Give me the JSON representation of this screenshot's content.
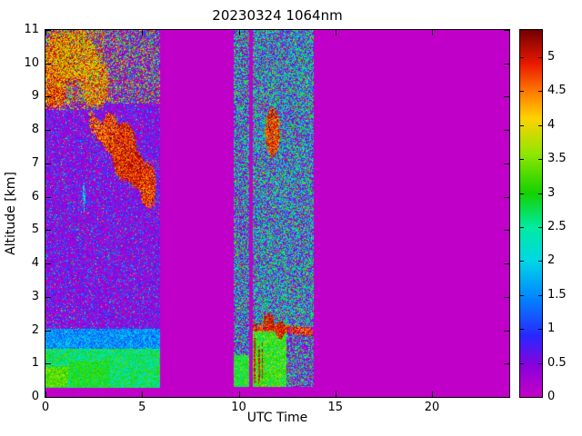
{
  "chart_data": {
    "type": "heatmap",
    "title": "20230324 1064nm",
    "xlabel": "UTC Time",
    "ylabel": "Altitude [km]",
    "xlim": [
      0,
      24
    ],
    "ylim": [
      0,
      11
    ],
    "xticks": [
      0,
      5,
      10,
      15,
      20
    ],
    "yticks": [
      0,
      1,
      2,
      3,
      4,
      5,
      6,
      7,
      8,
      9,
      10,
      11
    ],
    "colorbar": {
      "range": [
        0,
        5.4
      ],
      "ticks": [
        0,
        0.5,
        1,
        1.5,
        2,
        2.5,
        3,
        3.5,
        4,
        4.5,
        5
      ]
    },
    "colormap": {
      "stops": [
        [
          0.0,
          198,
          0,
          198
        ],
        [
          0.45,
          140,
          0,
          220
        ],
        [
          0.9,
          40,
          40,
          255
        ],
        [
          1.5,
          0,
          140,
          255
        ],
        [
          2.0,
          0,
          215,
          230
        ],
        [
          2.5,
          0,
          235,
          160
        ],
        [
          3.0,
          20,
          210,
          0
        ],
        [
          3.6,
          150,
          230,
          0
        ],
        [
          4.1,
          255,
          210,
          0
        ],
        [
          4.5,
          255,
          120,
          0
        ],
        [
          4.9,
          235,
          25,
          0
        ],
        [
          5.4,
          115,
          0,
          0
        ]
      ]
    },
    "background_value": 0.05,
    "data_time_windows": [
      [
        0,
        5.92
      ],
      [
        9.72,
        10.52
      ],
      [
        10.72,
        13.88
      ]
    ],
    "regions": [
      {
        "name": "seg1-lownoise",
        "t": [
          0,
          5.92
        ],
        "z": [
          2.05,
          11
        ],
        "type": "lownoise",
        "max": 1.5,
        "pow": 2.2,
        "seed": 1
      },
      {
        "name": "seg1-dots",
        "t": [
          0,
          5.92
        ],
        "z": [
          2.05,
          11
        ],
        "type": "speckle",
        "p": 0.045,
        "lo": 1.4,
        "hi": 3.1,
        "seed": 2
      },
      {
        "name": "seg1-hotdots",
        "t": [
          0,
          5.92
        ],
        "z": [
          2.05,
          11
        ],
        "type": "speckle",
        "p": 0.008,
        "lo": 3.4,
        "hi": 5.2,
        "seed": 3
      },
      {
        "name": "seg1-top-speckle",
        "t": [
          0,
          5.92
        ],
        "z": [
          8.8,
          11
        ],
        "type": "speckle",
        "p": 0.38,
        "lo": 2.0,
        "hi": 5.3,
        "seed": 4
      },
      {
        "name": "seg1-top-left-speckle",
        "t": [
          0,
          3.0
        ],
        "z": [
          8.6,
          11
        ],
        "type": "speckle",
        "p": 0.35,
        "lo": 3.2,
        "hi": 5.4,
        "seed": 5
      },
      {
        "name": "seg1-bl-top",
        "t": [
          0,
          5.92
        ],
        "z": [
          1.45,
          2.05
        ],
        "type": "noise",
        "base": 1.0,
        "amp": 1.1,
        "seed": 6
      },
      {
        "name": "seg1-bl",
        "t": [
          0,
          5.92
        ],
        "z": [
          0.27,
          1.45
        ],
        "type": "noise",
        "base": 1.9,
        "amp": 1.5,
        "seed": 7
      },
      {
        "name": "seg1-bl-bright",
        "t": [
          1.3,
          3.3
        ],
        "z": [
          0.3,
          1.05
        ],
        "type": "noise",
        "base": 2.5,
        "amp": 0.9,
        "seed": 8
      },
      {
        "name": "seg1-bl-yellow",
        "t": [
          0,
          1.2
        ],
        "z": [
          0.3,
          0.9
        ],
        "type": "noise",
        "base": 2.8,
        "amp": 1.0,
        "seed": 9
      },
      {
        "name": "colA-lownoise",
        "t": [
          9.72,
          10.52
        ],
        "z": [
          0.3,
          11
        ],
        "type": "lownoise",
        "max": 1.2,
        "pow": 2,
        "seed": 11
      },
      {
        "name": "colA-speckle",
        "t": [
          9.72,
          10.52
        ],
        "z": [
          0.3,
          11
        ],
        "type": "speckle",
        "p": 0.5,
        "lo": 1.7,
        "hi": 3.4,
        "seed": 12
      },
      {
        "name": "colA-hotdots",
        "t": [
          9.72,
          10.52
        ],
        "z": [
          0.3,
          11
        ],
        "type": "speckle",
        "p": 0.02,
        "lo": 3.6,
        "hi": 5.2,
        "seed": 13
      },
      {
        "name": "colA-bl",
        "t": [
          9.72,
          10.52
        ],
        "z": [
          0.3,
          1.25
        ],
        "type": "noise",
        "base": 2.3,
        "amp": 1.3,
        "seed": 14
      },
      {
        "name": "colB-lownoise",
        "t": [
          10.72,
          13.88
        ],
        "z": [
          2.1,
          11
        ],
        "type": "lownoise",
        "max": 1.2,
        "pow": 2,
        "seed": 15
      },
      {
        "name": "colB-speckle",
        "t": [
          10.72,
          13.88
        ],
        "z": [
          2.1,
          11
        ],
        "type": "speckle",
        "p": 0.55,
        "lo": 1.6,
        "hi": 3.3,
        "seed": 16
      },
      {
        "name": "colB-hotdots",
        "t": [
          10.72,
          13.88
        ],
        "z": [
          2.1,
          11
        ],
        "type": "speckle",
        "p": 0.03,
        "lo": 3.5,
        "hi": 5.2,
        "seed": 17
      },
      {
        "name": "colB-bl",
        "t": [
          10.72,
          12.45
        ],
        "z": [
          0.3,
          2.0
        ],
        "type": "noise",
        "base": 2.4,
        "amp": 1.4,
        "seed": 18
      },
      {
        "name": "colB-bl-sparse-low",
        "t": [
          12.45,
          13.88
        ],
        "z": [
          0.3,
          1.9
        ],
        "type": "lownoise",
        "max": 1.0,
        "pow": 2,
        "seed": 19
      },
      {
        "name": "colB-bl-sparse",
        "t": [
          12.45,
          13.88
        ],
        "z": [
          0.3,
          1.9
        ],
        "type": "speckle",
        "p": 0.45,
        "lo": 1.8,
        "hi": 3.4,
        "seed": 20
      }
    ],
    "features": [
      {
        "type": "streak",
        "name": "descending-cloud",
        "from": [
          2.25,
          8.35
        ],
        "to": [
          5.65,
          6.0
        ],
        "w": 0.38,
        "base": 3.9,
        "amp": 1.5,
        "coverage": 0.8,
        "seed": 21
      },
      {
        "type": "ellipse",
        "name": "cirrus-1",
        "ct": 0.55,
        "cz": 9.9,
        "rt": 0.75,
        "rz": 1.05,
        "base": 3.5,
        "amp": 1.9,
        "coverage": 0.9,
        "seed": 22
      },
      {
        "type": "ellipse",
        "name": "cirrus-2",
        "ct": 1.6,
        "cz": 10.2,
        "rt": 1.1,
        "rz": 0.85,
        "base": 3.3,
        "amp": 2.0,
        "coverage": 0.85,
        "seed": 23
      },
      {
        "type": "ellipse",
        "name": "cirrus-3",
        "ct": 2.6,
        "cz": 9.4,
        "rt": 0.8,
        "rz": 0.8,
        "base": 3.4,
        "amp": 1.8,
        "coverage": 0.7,
        "seed": 24
      },
      {
        "type": "ellipse",
        "name": "cirrus-4",
        "ct": 0.5,
        "cz": 9.0,
        "rt": 0.6,
        "rz": 0.35,
        "base": 4.0,
        "amp": 1.4,
        "coverage": 0.85,
        "seed": 25
      },
      {
        "type": "ellipse",
        "name": "midcloud-1",
        "ct": 3.35,
        "cz": 7.95,
        "rt": 0.5,
        "rz": 0.6,
        "base": 4.1,
        "amp": 1.3,
        "coverage": 0.9,
        "seed": 26
      },
      {
        "type": "ellipse",
        "name": "midcloud-2",
        "ct": 4.1,
        "cz": 7.35,
        "rt": 0.7,
        "rz": 0.95,
        "base": 4.3,
        "amp": 1.1,
        "coverage": 0.95,
        "seed": 27
      },
      {
        "type": "ellipse",
        "name": "midcloud-3",
        "ct": 4.7,
        "cz": 6.8,
        "rt": 0.5,
        "rz": 0.6,
        "base": 4.4,
        "amp": 1.0,
        "coverage": 0.92,
        "seed": 28
      },
      {
        "type": "ellipse",
        "name": "midcloud-4",
        "ct": 5.3,
        "cz": 6.35,
        "rt": 0.45,
        "rz": 0.75,
        "base": 4.2,
        "amp": 1.2,
        "coverage": 0.9,
        "seed": 29
      },
      {
        "type": "ellipse",
        "name": "thin-column",
        "ct": 2.0,
        "cz": 6.0,
        "rt": 0.06,
        "rz": 0.55,
        "base": 1.8,
        "amp": 0.6,
        "coverage": 0.8,
        "seed": 30
      },
      {
        "type": "streak",
        "name": "colB-top-line",
        "from": [
          10.75,
          2.1
        ],
        "to": [
          13.85,
          1.95
        ],
        "w": 0.16,
        "base": 4.2,
        "amp": 1.2,
        "coverage": 0.75,
        "seed": 31
      },
      {
        "type": "ellipse",
        "name": "colB-top-blob-1",
        "ct": 11.55,
        "cz": 2.25,
        "rt": 0.3,
        "rz": 0.3,
        "base": 4.5,
        "amp": 0.9,
        "coverage": 0.9,
        "seed": 32
      },
      {
        "type": "ellipse",
        "name": "colB-top-blob-2",
        "ct": 12.15,
        "cz": 2.0,
        "rt": 0.28,
        "rz": 0.28,
        "base": 4.5,
        "amp": 0.9,
        "coverage": 0.9,
        "seed": 33
      },
      {
        "type": "ellipse",
        "name": "colB-upper-cloud",
        "ct": 11.75,
        "cz": 7.95,
        "rt": 0.42,
        "rz": 0.8,
        "base": 4.2,
        "amp": 1.2,
        "coverage": 0.9,
        "seed": 34
      },
      {
        "type": "ellipse",
        "name": "colB-streak-1",
        "ct": 10.82,
        "cz": 1.1,
        "rt": 0.06,
        "rz": 0.8,
        "base": 4.6,
        "amp": 0.8,
        "coverage": 0.85,
        "seed": 35
      },
      {
        "type": "ellipse",
        "name": "colB-streak-2",
        "ct": 11.05,
        "cz": 0.95,
        "rt": 0.05,
        "rz": 0.65,
        "base": 4.6,
        "amp": 0.8,
        "coverage": 0.85,
        "seed": 36
      },
      {
        "type": "ellipse",
        "name": "colB-streak-3",
        "ct": 11.22,
        "cz": 1.1,
        "rt": 0.04,
        "rz": 0.6,
        "base": 4.6,
        "amp": 0.8,
        "coverage": 0.8,
        "seed": 37
      }
    ]
  }
}
